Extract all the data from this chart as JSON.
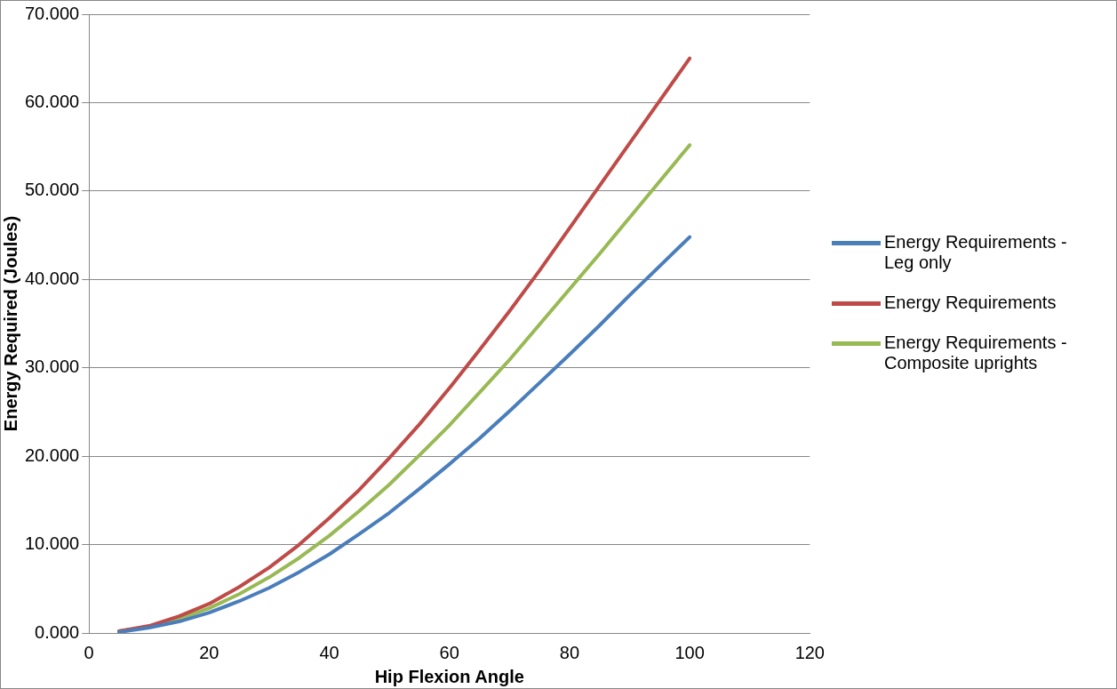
{
  "chart_data": {
    "type": "line",
    "xlabel": "Hip Flexion Angle",
    "ylabel": "Energy Required (Joules)",
    "x": [
      5,
      10,
      15,
      20,
      25,
      30,
      35,
      40,
      45,
      50,
      55,
      60,
      65,
      70,
      75,
      80,
      85,
      90,
      95,
      100
    ],
    "series": [
      {
        "name": "Energy Requirements - Leg only",
        "color": "#4a7ebb",
        "values": [
          0.1,
          0.6,
          1.3,
          2.3,
          3.6,
          5.1,
          6.9,
          8.9,
          11.2,
          13.6,
          16.3,
          19.1,
          22.0,
          25.1,
          28.3,
          31.5,
          34.8,
          38.2,
          41.5,
          44.8
        ]
      },
      {
        "name": "Energy Requirements",
        "color": "#be4b48",
        "values": [
          0.2,
          0.8,
          1.9,
          3.3,
          5.2,
          7.4,
          10.0,
          13.0,
          16.2,
          19.8,
          23.6,
          27.7,
          32.0,
          36.4,
          41.0,
          45.8,
          50.6,
          55.4,
          60.2,
          65.0
        ]
      },
      {
        "name": "Energy Requirements - Composite uprights",
        "color": "#98b954",
        "values": [
          0.2,
          0.7,
          1.6,
          2.8,
          4.4,
          6.3,
          8.5,
          11.0,
          13.8,
          16.8,
          20.1,
          23.5,
          27.2,
          30.9,
          34.9,
          38.9,
          42.9,
          47.0,
          51.1,
          55.2
        ]
      }
    ],
    "xlim": [
      0,
      120
    ],
    "xticks": [
      0,
      20,
      40,
      60,
      80,
      100,
      120
    ],
    "ylim": [
      0,
      70
    ],
    "yticks": [
      {
        "value": 0,
        "label": "0.000"
      },
      {
        "value": 10,
        "label": "10.000"
      },
      {
        "value": 20,
        "label": "20.000"
      },
      {
        "value": 30,
        "label": "30.000"
      },
      {
        "value": 40,
        "label": "40.000"
      },
      {
        "value": 50,
        "label": "50.000"
      },
      {
        "value": 60,
        "label": "60.000"
      },
      {
        "value": 70,
        "label": "70.000"
      }
    ],
    "grid": "y",
    "legend": "right",
    "marker": "none",
    "line_style": "solid"
  }
}
